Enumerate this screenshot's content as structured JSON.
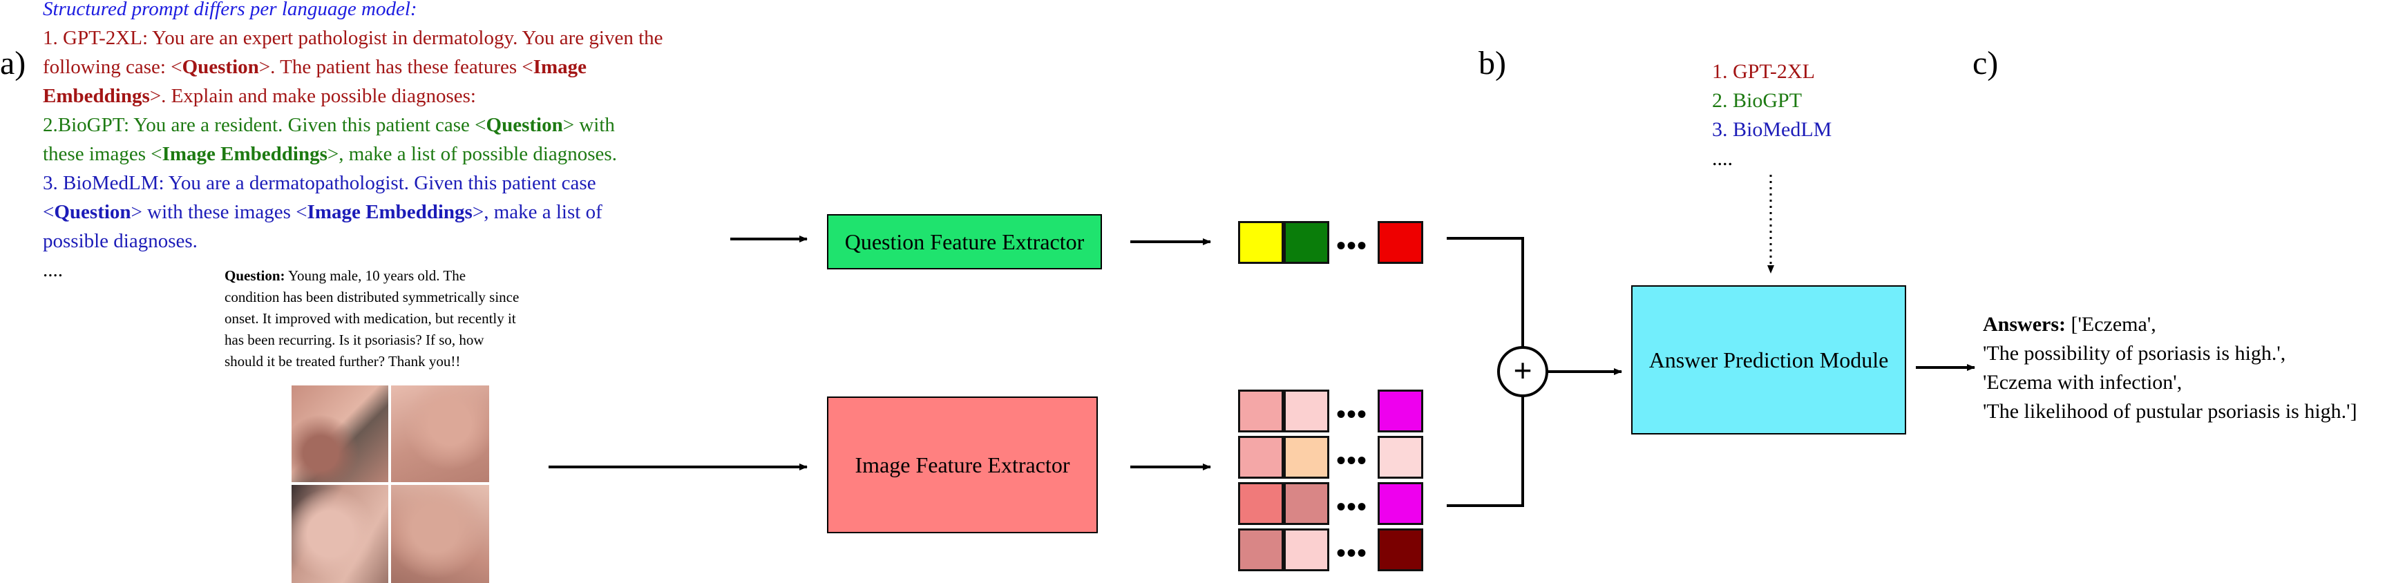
{
  "labels": {
    "a": "a)",
    "b": "b)",
    "c": "c)"
  },
  "prompts": {
    "title": "Structured prompt differs per language model:",
    "gpt": {
      "l1": "1. GPT-2XL: You are an expert pathologist in dermatology. You are given the",
      "l2a": "following case: <",
      "l2b": "Question",
      "l2c": ">.  The patient has these features <",
      "l2d": "Image",
      "l3a": "Embeddings",
      "l3b": ">. Explain and make possible diagnoses:"
    },
    "biogpt": {
      "l1a": "2.BioGPT:  You are a resident. Given this patient case <",
      "l1b": "Question",
      "l1c": "> with",
      "l2a": "these images  <",
      "l2b": "Image Embeddings",
      "l2c": ">, make a list of possible diagnoses."
    },
    "biomedlm": {
      "l1": "3. BioMedLM:  You are a dermatopathologist. Given this patient case",
      "l2a": "<",
      "l2b": "Question",
      "l2c": "> with these images  <",
      "l2d": "Image Embeddings",
      "l2e": ">, make a list of",
      "l3": "possible diagnoses."
    },
    "ellipsis": "...."
  },
  "question": {
    "label": "Question:",
    "l1": " Young male, 10 years old. The",
    "l2": "condition has been distributed symmetrically since",
    "l3": "onset. It improved with medication, but recently it",
    "l4": "has been recurring.  Is it psoriasis?  If so, how",
    "l5": "should it be treated further? Thank you!!"
  },
  "extractors": {
    "question": "Question Feature Extractor",
    "image": "Image Feature Extractor"
  },
  "embeddings": {
    "dots": "•••",
    "question_colors": [
      "#ffff00",
      "#0a7d0a",
      "#ee0000"
    ],
    "image_rows": [
      [
        "#f4a7a7",
        "#fbd0d0",
        "#ee00ee"
      ],
      [
        "#f4a7a7",
        "#fccfa7",
        "#fcd8d8"
      ],
      [
        "#f07a7a",
        "#d98686",
        "#ee00ee"
      ],
      [
        "#d98686",
        "#fbd0d0",
        "#7a0000"
      ]
    ]
  },
  "fusion": {
    "symbol": "+"
  },
  "models": {
    "items": [
      "1. GPT-2XL",
      "2. BioGPT",
      "3. BioMedLM"
    ],
    "colors": [
      "#a31515",
      "#1d7a12",
      "#1c1cb8"
    ],
    "ellipsis": "...."
  },
  "answer_module": "Answer Prediction Module",
  "answers": {
    "label": "Answers:",
    "l1": " ['Eczema',",
    "l2": "'The possibility of psoriasis is high.',",
    "l3": "'Eczema with infection',",
    "l4": "'The likelihood of pustular psoriasis is high.']"
  },
  "colors": {
    "question_box": "#1fe36e",
    "image_box": "#ff8080",
    "answer_box": "#72eefc"
  }
}
